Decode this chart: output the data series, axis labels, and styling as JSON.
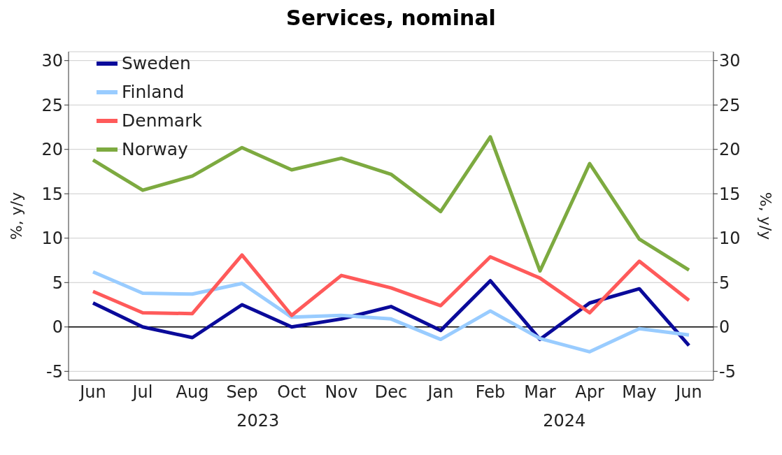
{
  "chart_data": {
    "type": "line",
    "title": "Services, nominal",
    "ylabel": "%, y/y",
    "y2label": "%, y/y",
    "categories": [
      "Jun",
      "Jul",
      "Aug",
      "Sep",
      "Oct",
      "Nov",
      "Dec",
      "Jan",
      "Feb",
      "Mar",
      "Apr",
      "May",
      "Jun"
    ],
    "annotations": [
      "2023",
      "2024"
    ],
    "series": [
      {
        "name": "Sweden",
        "color": "#0a0a9a",
        "values": [
          2.7,
          0,
          -1.2,
          2.5,
          0,
          0.9,
          2.3,
          -0.4,
          5.2,
          -1.4,
          2.7,
          4.3,
          -2.1
        ]
      },
      {
        "name": "Finland",
        "color": "#99ccff",
        "values": [
          6.2,
          3.8,
          3.7,
          4.9,
          1.1,
          1.3,
          0.9,
          -1.4,
          1.8,
          -1.3,
          -2.8,
          -0.2,
          -0.9
        ]
      },
      {
        "name": "Denmark",
        "color": "#ff5a5a",
        "values": [
          4.0,
          1.6,
          1.5,
          8.1,
          1.3,
          5.8,
          4.4,
          2.4,
          7.9,
          5.5,
          1.6,
          7.4,
          3.0
        ]
      },
      {
        "name": "Norway",
        "color": "#7daa40",
        "values": [
          18.8,
          15.4,
          17.0,
          20.2,
          17.7,
          19.0,
          17.2,
          13.0,
          21.4,
          6.3,
          18.4,
          9.9,
          6.4
        ]
      }
    ],
    "ylim": [
      -6,
      31
    ],
    "yticks": [
      -5,
      0,
      5,
      10,
      15,
      20,
      25,
      30
    ],
    "y2lim": [
      -6,
      31
    ],
    "y2ticks": [
      -5,
      0,
      5,
      10,
      15,
      20,
      25,
      30
    ],
    "ref_lines": [
      {
        "axis": "y",
        "value": 0,
        "color": "#000000"
      }
    ],
    "grid": "y",
    "legend": "top left",
    "marker": "none",
    "line_style": "solid"
  }
}
